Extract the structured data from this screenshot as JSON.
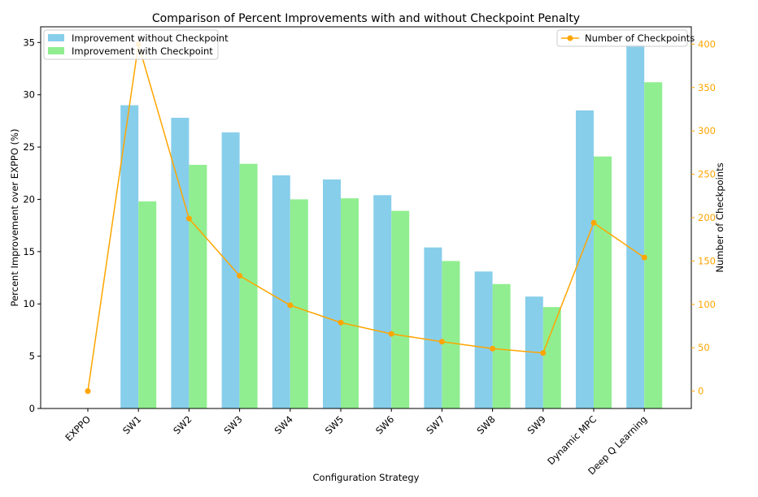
{
  "chart_data": {
    "type": "bar",
    "title": "Comparison of Percent Improvements with and without Checkpoint Penalty",
    "xlabel": "Configuration Strategy",
    "ylabel": "Percent Improvement over EXPPO (%)",
    "y2label": "Number of Checkpoints",
    "categories": [
      "EXPPO",
      "SW1",
      "SW2",
      "SW3",
      "SW4",
      "SW5",
      "SW6",
      "SW7",
      "SW8",
      "SW9",
      "Dynamic MPC",
      "Deep Q Learning"
    ],
    "ylim": [
      0,
      36.5
    ],
    "y2lim": [
      -20,
      420
    ],
    "yticks": [
      0,
      5,
      10,
      15,
      20,
      25,
      30,
      35
    ],
    "y2ticks": [
      0,
      50,
      100,
      150,
      200,
      250,
      300,
      350,
      400
    ],
    "series": [
      {
        "name": "Improvement without Checkpoint",
        "axis": "left",
        "kind": "bar",
        "color": "#87CEEB",
        "values": [
          0,
          29.0,
          27.8,
          26.4,
          22.3,
          21.9,
          20.4,
          15.4,
          13.1,
          10.7,
          28.5,
          34.8
        ]
      },
      {
        "name": "Improvement with Checkpoint",
        "axis": "left",
        "kind": "bar",
        "color": "#90EE90",
        "values": [
          0,
          19.8,
          23.3,
          23.4,
          20.0,
          20.1,
          18.9,
          14.1,
          11.9,
          9.7,
          24.1,
          31.2
        ]
      },
      {
        "name": "Number of Checkpoints",
        "axis": "right",
        "kind": "line",
        "color": "#FFA500",
        "values": [
          0,
          400,
          199,
          133,
          99,
          79,
          66,
          57,
          49,
          44,
          194,
          154
        ]
      }
    ],
    "legend_left_placement": "upper-left",
    "legend_right_placement": "upper-right",
    "grid": false
  }
}
